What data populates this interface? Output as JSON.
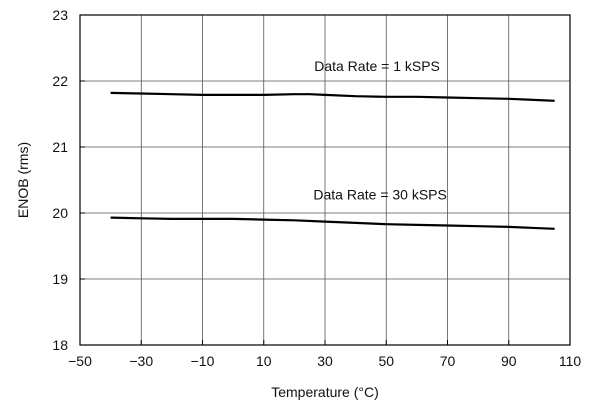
{
  "chart_data": {
    "type": "line",
    "title": "",
    "xlabel": "Temperature (°C)",
    "ylabel": "ENOB (rms)",
    "xlim": [
      -50,
      110
    ],
    "ylim": [
      18,
      23
    ],
    "xticks": [
      -50,
      -30,
      -10,
      10,
      30,
      50,
      70,
      90,
      110
    ],
    "xtick_labels": [
      "−50",
      "−30",
      "−10",
      "10",
      "30",
      "50",
      "70",
      "90",
      "110"
    ],
    "yticks": [
      18,
      19,
      20,
      21,
      22,
      23
    ],
    "ytick_labels": [
      "18",
      "19",
      "20",
      "21",
      "22",
      "23"
    ],
    "grid": true,
    "line_color": "#000000",
    "series": [
      {
        "x": [
          -40,
          -30,
          -20,
          -10,
          0,
          10,
          20,
          25,
          30,
          40,
          50,
          60,
          70,
          80,
          90,
          100,
          105
        ],
        "values": [
          21.82,
          21.81,
          21.8,
          21.79,
          21.79,
          21.79,
          21.8,
          21.8,
          21.79,
          21.77,
          21.76,
          21.76,
          21.75,
          21.74,
          21.73,
          21.71,
          21.7
        ]
      },
      {
        "x": [
          -40,
          -30,
          -20,
          -10,
          0,
          10,
          20,
          30,
          40,
          50,
          60,
          70,
          80,
          90,
          100,
          105
        ],
        "values": [
          19.93,
          19.92,
          19.91,
          19.91,
          19.91,
          19.9,
          19.89,
          19.87,
          19.85,
          19.83,
          19.82,
          19.81,
          19.8,
          19.79,
          19.77,
          19.76
        ]
      }
    ],
    "annotations": [
      {
        "text": "Data Rate = 1 kSPS",
        "x": 47,
        "y": 22.23
      },
      {
        "text": "Data Rate = 30 kSPS",
        "x": 48,
        "y": 20.28
      }
    ]
  }
}
